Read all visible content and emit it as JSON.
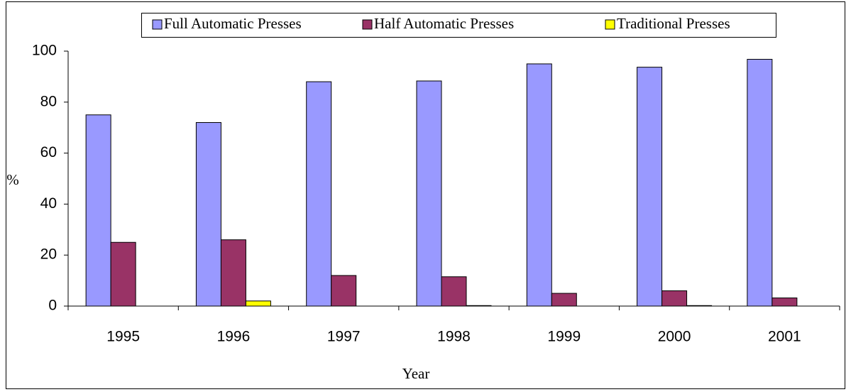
{
  "chart_data": {
    "type": "bar",
    "y_label": "%",
    "x_label": "Year",
    "categories": [
      "1995",
      "1996",
      "1997",
      "1998",
      "1999",
      "2000",
      "2001"
    ],
    "series": [
      {
        "name": "Full Automatic Presses",
        "color": "#9999ff",
        "values": [
          75,
          72,
          88,
          88.3,
          95,
          93.7,
          96.8
        ]
      },
      {
        "name": "Half Automatic Presses",
        "color": "#993366",
        "values": [
          25,
          26,
          12,
          11.5,
          5,
          6,
          3.2
        ]
      },
      {
        "name": "Traditional Presses",
        "color": "#ffff00",
        "values": [
          0,
          2,
          0,
          0.2,
          0,
          0.2,
          0
        ]
      }
    ],
    "ylim": [
      0,
      100
    ],
    "yticks": [
      0,
      20,
      40,
      60,
      80,
      100
    ],
    "grid": false,
    "legend": "top"
  }
}
